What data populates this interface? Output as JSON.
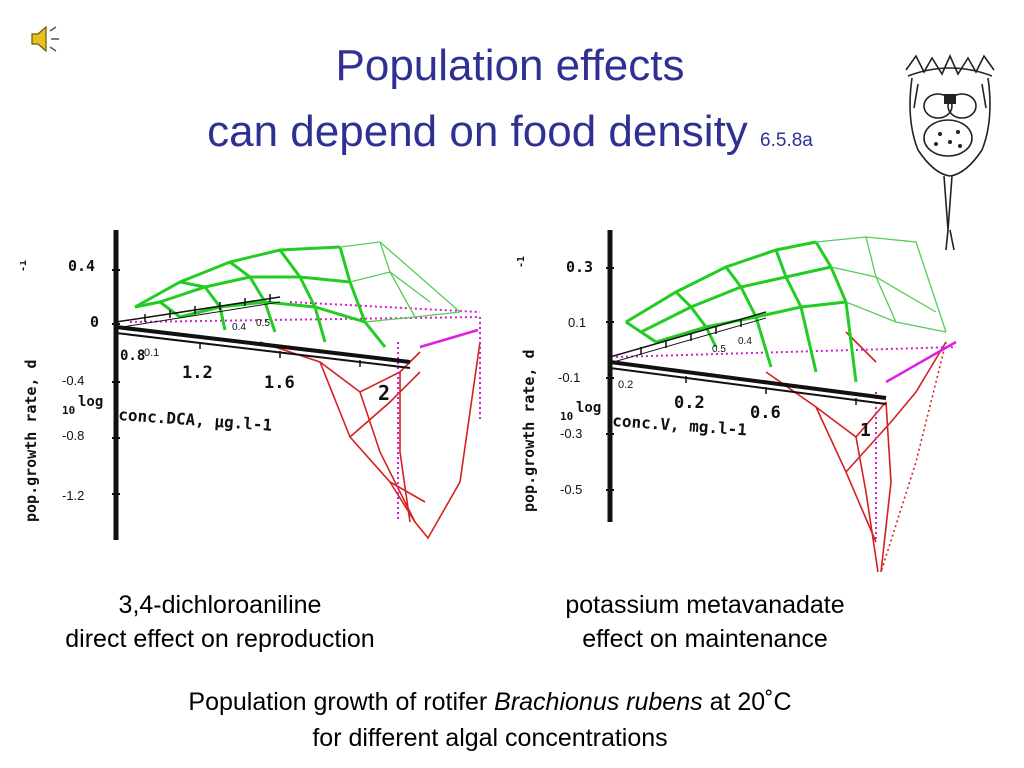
{
  "title": {
    "line1": "Population effects",
    "line2": "can depend on food density",
    "slide_number": "6.5.8a"
  },
  "icons": {
    "speaker": "speaker-icon",
    "rotifer": "rotifer-illustration"
  },
  "plots": {
    "left": {
      "y_label": "pop.growth rate, d",
      "y_ticks": [
        "0.4",
        "0",
        "-0.4",
        "-0.8",
        "-1.2"
      ],
      "x_ticks": [
        "0.8",
        "1.2",
        "1.6",
        "2"
      ],
      "inner_ticks": [
        "0.1",
        "0.4",
        "0.5"
      ],
      "log_prefix": "10",
      "log_label": "log",
      "x_label": "conc.DCA, µg.l-1"
    },
    "right": {
      "y_label": "pop.growth rate, d",
      "y_ticks": [
        "0.3",
        "0.1",
        "-0.1",
        "-0.3",
        "-0.5"
      ],
      "x_ticks": [
        "0.2",
        "0.2",
        "0.6",
        "1"
      ],
      "inner_ticks": [
        "0.5",
        "0.4"
      ],
      "log_prefix": "10",
      "log_label": "log",
      "x_label": "conc.V, mg.l-1"
    }
  },
  "captions": {
    "left_line1": "3,4-dichloroaniline",
    "left_line2": "direct effect on reproduction",
    "right_line1": "potassium metavanadate",
    "right_line2": "effect on maintenance"
  },
  "footer": {
    "line1_prefix": "Population growth of rotifer ",
    "line1_species": "Brachionus rubens",
    "line1_suffix": " at 20˚C",
    "line2": "for different algal concentrations"
  }
}
